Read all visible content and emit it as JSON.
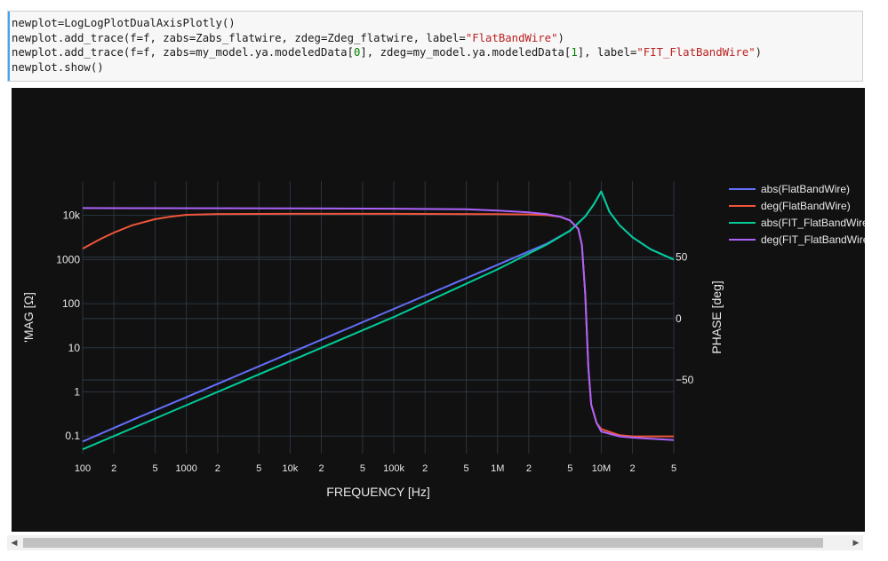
{
  "code_cell": {
    "lines": [
      {
        "parts": [
          {
            "t": "newplot=LogLogPlotDualAxisPlotly()"
          }
        ]
      },
      {
        "parts": [
          {
            "t": "newplot.add_trace(f=f, zabs=Zabs_flatwire, zdeg=Zdeg_flatwire, label="
          },
          {
            "t": "\"FlatBandWire\"",
            "c": "s"
          },
          {
            "t": ")"
          }
        ]
      },
      {
        "parts": [
          {
            "t": "newplot.add_trace(f=f, zabs=my_model.ya.modeledData["
          },
          {
            "t": "0",
            "c": "n"
          },
          {
            "t": "], zdeg=my_model.ya.modeledData["
          },
          {
            "t": "1",
            "c": "n"
          },
          {
            "t": "], label="
          },
          {
            "t": "\"FIT_FlatBandWire\"",
            "c": "s"
          },
          {
            "t": ")"
          }
        ]
      },
      {
        "parts": [
          {
            "t": "newplot.show()"
          }
        ]
      }
    ]
  },
  "scrollbar": {
    "left_arrow": "◀",
    "right_arrow": "▶"
  },
  "chart_data": {
    "type": "line",
    "xlabel": "FREQUENCY [Hz]",
    "ylabel_left": "'MAG [Ω]",
    "ylabel_right": "PHASE [deg]",
    "xscale": "log",
    "yscale_left": "log",
    "x_range": [
      100,
      50000000
    ],
    "y_left_range": [
      0.04,
      60000
    ],
    "y_right_range": [
      -110,
      112
    ],
    "x_ticks": [
      {
        "v": 100,
        "label": "100"
      },
      {
        "v": 200,
        "label": "2"
      },
      {
        "v": 500,
        "label": "5"
      },
      {
        "v": 1000,
        "label": "1000"
      },
      {
        "v": 2000,
        "label": "2"
      },
      {
        "v": 5000,
        "label": "5"
      },
      {
        "v": 10000,
        "label": "10k"
      },
      {
        "v": 20000,
        "label": "2"
      },
      {
        "v": 50000,
        "label": "5"
      },
      {
        "v": 100000,
        "label": "100k"
      },
      {
        "v": 200000,
        "label": "2"
      },
      {
        "v": 500000,
        "label": "5"
      },
      {
        "v": 1000000,
        "label": "1M"
      },
      {
        "v": 2000000,
        "label": "2"
      },
      {
        "v": 5000000,
        "label": "5"
      },
      {
        "v": 10000000,
        "label": "10M"
      },
      {
        "v": 20000000,
        "label": "2"
      },
      {
        "v": 50000000,
        "label": "5"
      }
    ],
    "y_left_ticks": [
      {
        "v": 0.1,
        "label": "0.1"
      },
      {
        "v": 1,
        "label": "1"
      },
      {
        "v": 10,
        "label": "10"
      },
      {
        "v": 100,
        "label": "100"
      },
      {
        "v": 1000,
        "label": "1000"
      },
      {
        "v": 10000,
        "label": "10k"
      }
    ],
    "y_right_ticks": [
      {
        "v": 50,
        "label": "50"
      },
      {
        "v": 0,
        "label": "0"
      },
      {
        "v": -50,
        "label": "−50"
      }
    ],
    "legend_position": "right",
    "series": [
      {
        "name": "abs(FlatBandWire)",
        "axis": "left",
        "color": "#636efa",
        "points": [
          [
            100,
            0.075
          ],
          [
            300,
            0.23
          ],
          [
            1000,
            0.76
          ],
          [
            10000,
            7.6
          ],
          [
            100000,
            76
          ],
          [
            1000000,
            760
          ],
          [
            3000000,
            2300
          ],
          [
            5000000,
            4500
          ],
          [
            7000000,
            9500
          ],
          [
            8500000,
            18000
          ],
          [
            10000000,
            35000
          ],
          [
            12000000,
            12000
          ],
          [
            15000000,
            6000
          ],
          [
            20000000,
            3200
          ],
          [
            30000000,
            1700
          ],
          [
            50000000,
            1000
          ]
        ]
      },
      {
        "name": "deg(FlatBandWire)",
        "axis": "right",
        "color": "#ef553b",
        "points": [
          [
            100,
            57
          ],
          [
            150,
            65
          ],
          [
            200,
            70
          ],
          [
            300,
            76
          ],
          [
            500,
            81
          ],
          [
            700,
            83
          ],
          [
            1000,
            84.5
          ],
          [
            2000,
            85.2
          ],
          [
            10000,
            85.3
          ],
          [
            100000,
            85.3
          ],
          [
            1000000,
            85
          ],
          [
            2000000,
            84.8
          ],
          [
            3000000,
            84.2
          ],
          [
            4000000,
            83
          ],
          [
            5000000,
            80
          ],
          [
            6000000,
            73
          ],
          [
            6500000,
            60
          ],
          [
            7000000,
            20
          ],
          [
            7500000,
            -40
          ],
          [
            8000000,
            -70
          ],
          [
            9000000,
            -85
          ],
          [
            10000000,
            -90
          ],
          [
            15000000,
            -95
          ],
          [
            20000000,
            -96
          ],
          [
            50000000,
            -96
          ]
        ]
      },
      {
        "name": "abs(FIT_FlatBandWire)",
        "axis": "left",
        "color": "#00cc96",
        "points": [
          [
            100,
            0.05
          ],
          [
            300,
            0.15
          ],
          [
            1000,
            0.5
          ],
          [
            10000,
            5
          ],
          [
            100000,
            50
          ],
          [
            1000000,
            600
          ],
          [
            3000000,
            2200
          ],
          [
            5000000,
            4500
          ],
          [
            7000000,
            9500
          ],
          [
            8500000,
            18000
          ],
          [
            10000000,
            35000
          ],
          [
            12000000,
            12000
          ],
          [
            15000000,
            6000
          ],
          [
            20000000,
            3200
          ],
          [
            30000000,
            1700
          ],
          [
            50000000,
            1000
          ]
        ]
      },
      {
        "name": "deg(FIT_FlatBandWire)",
        "axis": "right",
        "color": "#ab63fa",
        "points": [
          [
            100,
            90
          ],
          [
            10000,
            89.8
          ],
          [
            100000,
            89.5
          ],
          [
            500000,
            89
          ],
          [
            1000000,
            88
          ],
          [
            2000000,
            86.5
          ],
          [
            3000000,
            85
          ],
          [
            4000000,
            83
          ],
          [
            5000000,
            80
          ],
          [
            6000000,
            73
          ],
          [
            6500000,
            60
          ],
          [
            7000000,
            20
          ],
          [
            7500000,
            -40
          ],
          [
            8000000,
            -70
          ],
          [
            9000000,
            -85
          ],
          [
            10000000,
            -92
          ],
          [
            15000000,
            -96
          ],
          [
            20000000,
            -97
          ],
          [
            50000000,
            -99
          ]
        ]
      }
    ]
  }
}
